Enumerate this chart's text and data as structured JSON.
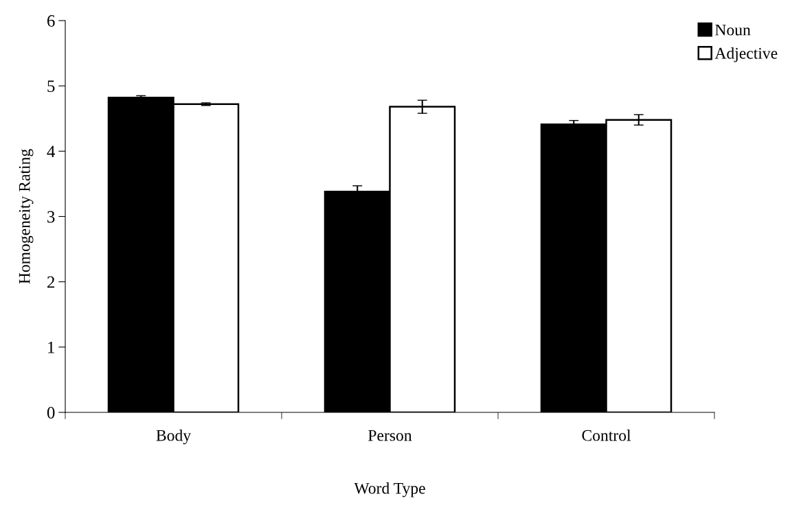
{
  "chart_data": {
    "type": "bar",
    "xlabel": "Word Type",
    "ylabel": "Homogeneity Rating",
    "categories": [
      "Body",
      "Person",
      "Control"
    ],
    "series": [
      {
        "name": "Noun",
        "color": "#000000",
        "values": [
          4.82,
          3.38,
          4.41
        ],
        "errors": [
          0.03,
          0.09,
          0.06
        ]
      },
      {
        "name": "Adjective",
        "color": "#ffffff",
        "values": [
          4.72,
          4.68,
          4.48
        ],
        "errors": [
          0.02,
          0.1,
          0.08
        ]
      }
    ],
    "ylim": [
      0,
      6
    ],
    "yticks": [
      0,
      1,
      2,
      3,
      4,
      5,
      6
    ],
    "grid": false,
    "legend": "top right"
  }
}
